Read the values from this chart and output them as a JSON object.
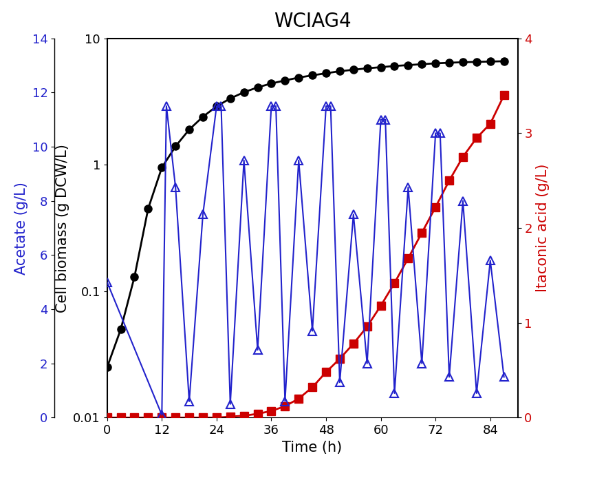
{
  "title": "WCIAG4",
  "xlabel": "Time (h)",
  "ylabel_biomass": "Cell biomass (g DCW/L)",
  "ylabel_acetate": "Acetate (g/L)",
  "ylabel_itaconic": "Itaconic acid (g/L)",
  "biomass_x": [
    0,
    3,
    6,
    9,
    12,
    15,
    18,
    21,
    24,
    27,
    30,
    33,
    36,
    39,
    42,
    45,
    48,
    51,
    54,
    57,
    60,
    63,
    66,
    69,
    72,
    75,
    78,
    81,
    84,
    87
  ],
  "biomass_y": [
    0.025,
    0.05,
    0.13,
    0.45,
    0.95,
    1.4,
    1.9,
    2.4,
    2.9,
    3.35,
    3.75,
    4.1,
    4.4,
    4.65,
    4.9,
    5.1,
    5.3,
    5.5,
    5.65,
    5.8,
    5.92,
    6.05,
    6.15,
    6.25,
    6.35,
    6.42,
    6.48,
    6.52,
    6.56,
    6.6
  ],
  "acetate_x": [
    0,
    12,
    13,
    15,
    18,
    21,
    24,
    25,
    27,
    30,
    33,
    36,
    37,
    39,
    42,
    45,
    48,
    49,
    51,
    54,
    57,
    60,
    61,
    63,
    66,
    69,
    72,
    73,
    75,
    78,
    81,
    84,
    87
  ],
  "acetate_y": [
    5.0,
    0.1,
    11.5,
    8.5,
    0.6,
    7.5,
    11.5,
    11.5,
    0.5,
    9.5,
    2.5,
    11.5,
    11.5,
    0.6,
    9.5,
    3.2,
    11.5,
    11.5,
    1.3,
    7.5,
    2.0,
    11.0,
    11.0,
    0.9,
    8.5,
    2.0,
    10.5,
    10.5,
    1.5,
    8.0,
    0.9,
    5.8,
    1.5
  ],
  "itaconic_x": [
    0,
    3,
    6,
    9,
    12,
    15,
    18,
    21,
    24,
    27,
    30,
    33,
    36,
    39,
    42,
    45,
    48,
    51,
    54,
    57,
    60,
    63,
    66,
    69,
    72,
    75,
    78,
    81,
    84,
    87
  ],
  "itaconic_y": [
    0.0,
    0.0,
    0.0,
    0.0,
    0.0,
    0.0,
    0.0,
    0.0,
    0.0,
    0.01,
    0.02,
    0.04,
    0.07,
    0.12,
    0.2,
    0.32,
    0.48,
    0.62,
    0.78,
    0.96,
    1.18,
    1.42,
    1.68,
    1.95,
    2.22,
    2.5,
    2.75,
    2.95,
    3.1,
    3.4
  ],
  "biomass_color": "#000000",
  "acetate_color": "#2222CC",
  "itaconic_color": "#CC0000",
  "ylim_biomass": [
    0.01,
    10
  ],
  "ylim_acetate": [
    0,
    14
  ],
  "ylim_itaconic": [
    0,
    4
  ],
  "xlim": [
    0,
    90
  ],
  "xticks": [
    0,
    12,
    24,
    36,
    48,
    60,
    72,
    84
  ],
  "yticks_biomass": [
    0.01,
    0.1,
    1,
    10
  ],
  "yticks_biomass_labels": [
    "0.01",
    "0.1",
    "1",
    "10"
  ],
  "yticks_acetate": [
    0,
    2,
    4,
    6,
    8,
    10,
    12,
    14
  ],
  "yticks_itaconic": [
    0,
    1,
    2,
    3,
    4
  ],
  "title_fontsize": 20,
  "label_fontsize": 15,
  "tick_fontsize": 13,
  "linewidth": 2.0,
  "markersize": 8
}
